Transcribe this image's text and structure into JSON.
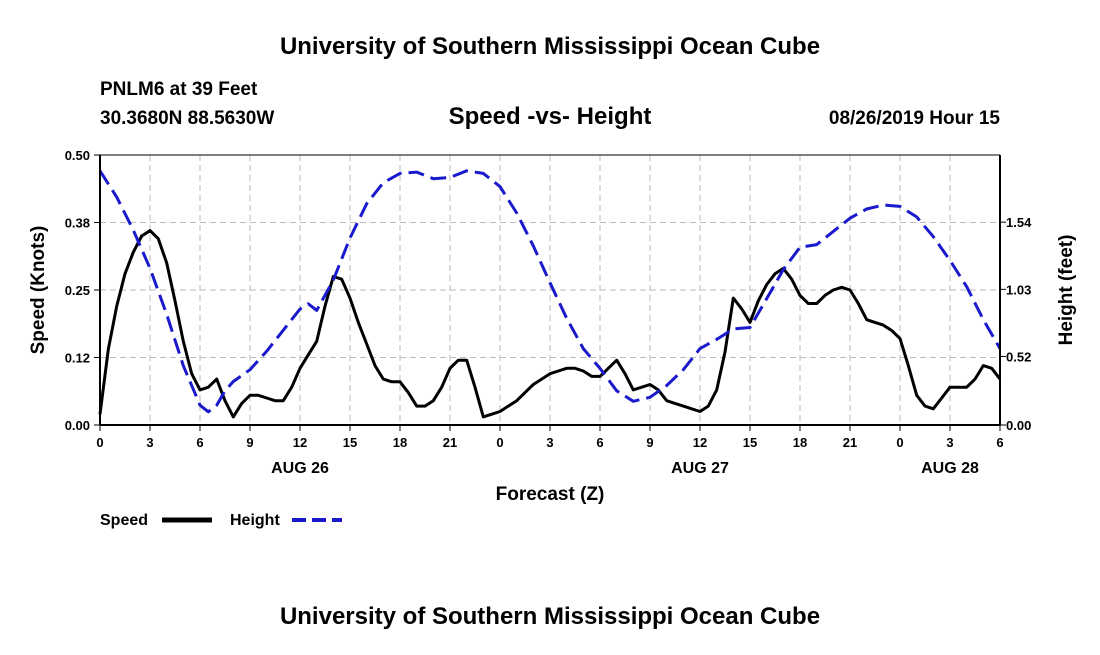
{
  "header": {
    "title": "University of Southern Mississippi Ocean Cube",
    "station": "PNLM6 at 39 Feet",
    "coords": "30.3680N 88.5630W",
    "datetime": "08/26/2019 Hour 15",
    "footer": "University of Southern Mississippi Ocean Cube"
  },
  "colors": {
    "speed": "#000000",
    "height": "#1a1acc",
    "grid": "#bbbbbb"
  },
  "chart_data": {
    "type": "line",
    "title": "Speed -vs- Height",
    "xlabel": "Forecast (Z)",
    "ylabel": "Speed (Knots)",
    "y2label": "Height (feet)",
    "xlim": [
      0,
      54
    ],
    "ylim": [
      0,
      0.5
    ],
    "y2lim": [
      0,
      2.05
    ],
    "xticks": [
      0,
      3,
      6,
      9,
      12,
      15,
      18,
      21,
      24,
      27,
      30,
      33,
      36,
      39,
      42,
      45,
      48,
      51,
      54
    ],
    "xtick_labels": [
      "0",
      "3",
      "6",
      "9",
      "12",
      "15",
      "18",
      "21",
      "0",
      "3",
      "6",
      "9",
      "12",
      "15",
      "18",
      "21",
      "0",
      "3",
      "6"
    ],
    "yticks": [
      0,
      0.125,
      0.25,
      0.375,
      0.5
    ],
    "ytick_labels": [
      "0.00",
      "0.12",
      "0.25",
      "0.38",
      "0.50"
    ],
    "y2ticks": [
      0,
      0.52,
      1.03,
      1.54
    ],
    "y2tick_labels": [
      "0.00",
      "0.52",
      "1.03",
      "1.54"
    ],
    "day_labels": [
      {
        "x": 12,
        "label": "AUG 26"
      },
      {
        "x": 36,
        "label": "AUG 27"
      },
      {
        "x": 51,
        "label": "AUG 28"
      }
    ],
    "legend": [
      {
        "name": "Speed",
        "style": "solid"
      },
      {
        "name": "Height",
        "style": "dashed"
      }
    ],
    "series": [
      {
        "name": "Speed",
        "axis": "left",
        "style": "solid",
        "x": [
          0,
          0.5,
          1,
          1.5,
          2,
          2.5,
          3,
          3.5,
          4,
          4.5,
          5,
          5.5,
          6,
          6.5,
          7,
          7.5,
          8,
          8.5,
          9,
          9.5,
          10,
          10.5,
          11,
          11.5,
          12,
          12.5,
          13,
          13.5,
          14,
          14.5,
          15,
          15.5,
          16,
          16.5,
          17,
          17.5,
          18,
          18.5,
          19,
          19.5,
          20,
          20.5,
          21,
          21.5,
          22,
          22.5,
          23,
          23.5,
          24,
          24.5,
          25,
          25.5,
          26,
          26.5,
          27,
          27.5,
          28,
          28.5,
          29,
          29.5,
          30,
          30.5,
          31,
          31.5,
          32,
          32.5,
          33,
          33.5,
          34,
          34.5,
          35,
          35.5,
          36,
          36.5,
          37,
          37.5,
          38,
          38.5,
          39,
          39.5,
          40,
          40.5,
          41,
          41.5,
          42,
          42.5,
          43,
          43.5,
          44,
          44.5,
          45,
          45.5,
          46,
          46.5,
          47,
          47.5,
          48,
          48.5,
          49,
          49.5,
          50,
          50.5,
          51,
          51.5,
          52,
          52.5,
          53,
          53.5,
          54
        ],
        "values": [
          0.02,
          0.14,
          0.22,
          0.28,
          0.32,
          0.35,
          0.36,
          0.345,
          0.3,
          0.23,
          0.155,
          0.095,
          0.065,
          0.07,
          0.085,
          0.045,
          0.015,
          0.04,
          0.055,
          0.055,
          0.05,
          0.045,
          0.045,
          0.07,
          0.105,
          0.13,
          0.155,
          0.22,
          0.275,
          0.27,
          0.235,
          0.19,
          0.15,
          0.11,
          0.085,
          0.08,
          0.08,
          0.06,
          0.035,
          0.035,
          0.045,
          0.07,
          0.105,
          0.12,
          0.12,
          0.07,
          0.015,
          0.02,
          0.025,
          0.035,
          0.045,
          0.06,
          0.075,
          0.085,
          0.095,
          0.1,
          0.105,
          0.105,
          0.1,
          0.09,
          0.09,
          0.105,
          0.12,
          0.095,
          0.065,
          0.07,
          0.075,
          0.065,
          0.045,
          0.04,
          0.035,
          0.03,
          0.025,
          0.035,
          0.065,
          0.135,
          0.235,
          0.215,
          0.19,
          0.23,
          0.26,
          0.28,
          0.29,
          0.27,
          0.24,
          0.225,
          0.225,
          0.24,
          0.25,
          0.255,
          0.25,
          0.225,
          0.195,
          0.19,
          0.185,
          0.175,
          0.16,
          0.11,
          0.055,
          0.035,
          0.03,
          0.05,
          0.07,
          0.07,
          0.07,
          0.085,
          0.11,
          0.105,
          0.085
        ]
      },
      {
        "name": "Height",
        "axis": "right",
        "style": "dashed",
        "x": [
          0,
          1,
          2,
          3,
          4,
          5,
          6,
          6.5,
          7,
          7.5,
          8,
          9,
          10,
          11,
          12,
          12.5,
          13,
          14,
          15,
          16,
          17,
          18,
          19,
          20,
          21,
          22,
          23,
          24,
          25,
          26,
          27,
          28,
          29,
          30,
          31,
          32,
          33,
          34,
          35,
          36,
          37,
          38,
          39,
          40,
          41,
          42,
          43,
          44,
          45,
          46,
          47,
          48,
          49,
          50,
          51,
          52,
          53,
          54
        ],
        "values": [
          1.93,
          1.73,
          1.48,
          1.19,
          0.84,
          0.45,
          0.15,
          0.1,
          0.15,
          0.26,
          0.33,
          0.42,
          0.56,
          0.72,
          0.88,
          0.92,
          0.87,
          1.1,
          1.42,
          1.68,
          1.84,
          1.91,
          1.92,
          1.87,
          1.88,
          1.93,
          1.91,
          1.81,
          1.61,
          1.36,
          1.08,
          0.81,
          0.58,
          0.43,
          0.26,
          0.18,
          0.21,
          0.3,
          0.42,
          0.58,
          0.65,
          0.73,
          0.74,
          0.96,
          1.18,
          1.35,
          1.37,
          1.47,
          1.57,
          1.64,
          1.67,
          1.66,
          1.58,
          1.43,
          1.25,
          1.05,
          0.8,
          0.58
        ]
      }
    ]
  }
}
